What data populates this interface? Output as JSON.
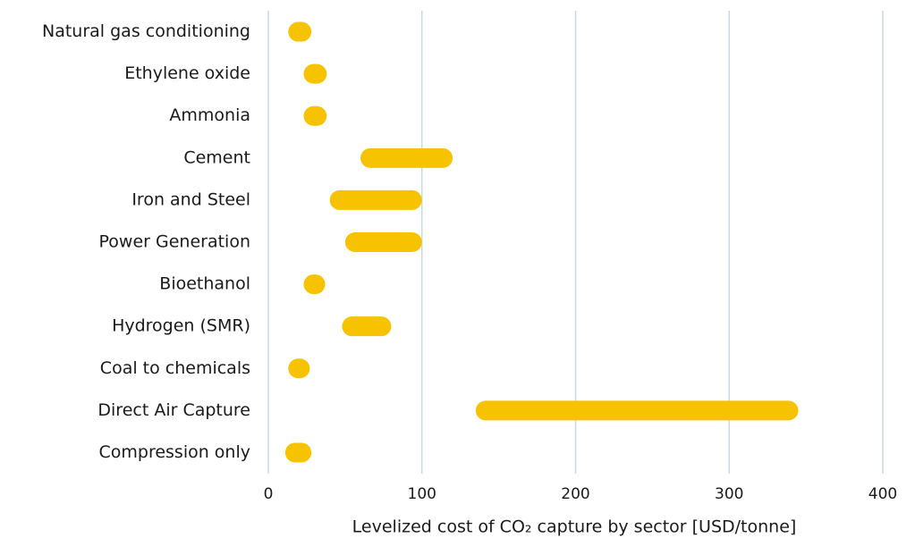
{
  "chart_data": {
    "type": "range-bar",
    "xlabel": "Levelized cost of CO₂ capture by sector [USD/tonne]",
    "categories": [
      "Natural gas conditioning",
      "Ethylene oxide",
      "Ammonia",
      "Cement",
      "Iron and Steel",
      "Power Generation",
      "Bioethanol",
      "Hydrogen (SMR)",
      "Coal to chemicals",
      "Direct Air Capture",
      "Compression only"
    ],
    "low": [
      13,
      23,
      23,
      60,
      40,
      50,
      23,
      48,
      13,
      135,
      11
    ],
    "high": [
      28,
      38,
      38,
      120,
      100,
      100,
      37,
      80,
      27,
      345,
      28
    ],
    "color": "#f7c300",
    "xlim": [
      0,
      400
    ],
    "xticks": [
      0,
      100,
      200,
      300,
      400
    ],
    "grid": true
  }
}
